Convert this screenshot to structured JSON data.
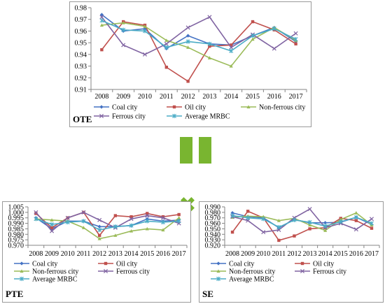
{
  "series_styles": [
    {
      "name": "Coal city",
      "color": "#4472c4",
      "marker": "diamond"
    },
    {
      "name": "Oil city",
      "color": "#c0504d",
      "marker": "square"
    },
    {
      "name": "Non-ferrous city",
      "color": "#9bbb59",
      "marker": "triangle"
    },
    {
      "name": "Ferrous city",
      "color": "#8064a2",
      "marker": "x"
    },
    {
      "name": "Average MRBC",
      "color": "#4bacc6",
      "marker": "star"
    }
  ],
  "operator_sign": "✖",
  "chart_data": [
    {
      "id": "ote",
      "type": "line",
      "panel_label": "OTE",
      "categories": [
        "2008",
        "2009",
        "2010",
        "2011",
        "2012",
        "2013",
        "2014",
        "2015",
        "2016",
        "2017"
      ],
      "ylim": [
        0.91,
        0.98
      ],
      "yticks": [
        "0.91",
        "0.92",
        "0.93",
        "0.94",
        "0.95",
        "0.96",
        "0.97",
        "0.98"
      ],
      "legend": "bottom",
      "series": [
        {
          "name": "Coal city",
          "values": [
            0.974,
            0.96,
            0.962,
            0.945,
            0.956,
            0.949,
            0.948,
            0.956,
            0.963,
            0.951
          ]
        },
        {
          "name": "Oil city",
          "values": [
            0.944,
            0.968,
            0.965,
            0.929,
            0.917,
            0.947,
            0.948,
            0.968,
            0.961,
            0.949
          ]
        },
        {
          "name": "Non-ferrous city",
          "values": [
            0.965,
            0.967,
            0.964,
            0.952,
            0.946,
            0.937,
            0.93,
            0.953,
            0.963,
            0.952
          ]
        },
        {
          "name": "Ferrous city",
          "values": [
            0.972,
            0.948,
            0.94,
            0.949,
            0.963,
            0.972,
            0.946,
            0.957,
            0.945,
            0.958
          ]
        },
        {
          "name": "Average MRBC",
          "values": [
            0.969,
            0.961,
            0.96,
            0.946,
            0.951,
            0.949,
            0.943,
            0.956,
            0.962,
            0.953
          ]
        }
      ]
    },
    {
      "id": "pte",
      "type": "line",
      "panel_label": "PTE",
      "categories": [
        "2008",
        "2009",
        "2010",
        "2011",
        "2012",
        "2013",
        "2014",
        "2015",
        "2016",
        "2017"
      ],
      "ylim": [
        0.97,
        1.005
      ],
      "yticks": [
        "0.970",
        "0.975",
        "0.980",
        "0.985",
        "0.990",
        "0.995",
        "1.000",
        "1.005"
      ],
      "legend": "bottom",
      "series": [
        {
          "name": "Coal city",
          "values": [
            0.995,
            0.985,
            0.992,
            0.992,
            0.987,
            0.987,
            0.988,
            0.994,
            0.992,
            0.993
          ]
        },
        {
          "name": "Oil city",
          "values": [
            0.999,
            0.986,
            0.995,
            1.0,
            0.979,
            0.997,
            0.996,
            0.999,
            0.996,
            0.998
          ]
        },
        {
          "name": "Non-ferrous city",
          "values": [
            0.994,
            0.993,
            0.992,
            0.986,
            0.976,
            0.979,
            0.983,
            0.985,
            0.984,
            0.995
          ]
        },
        {
          "name": "Ferrous city",
          "values": [
            1.0,
            0.983,
            0.995,
            1.0,
            0.993,
            0.986,
            0.994,
            0.997,
            0.995,
            0.99
          ]
        },
        {
          "name": "Average MRBC",
          "values": [
            0.994,
            0.989,
            0.991,
            0.992,
            0.984,
            0.987,
            0.988,
            0.992,
            0.991,
            0.992
          ]
        }
      ]
    },
    {
      "id": "se",
      "type": "line",
      "panel_label": "SE",
      "categories": [
        "2008",
        "2009",
        "2010",
        "2011",
        "2012",
        "2013",
        "2014",
        "2015",
        "2016",
        "2017"
      ],
      "ylim": [
        0.92,
        0.99
      ],
      "yticks": [
        "0.920",
        "0.930",
        "0.940",
        "0.950",
        "0.960",
        "0.970",
        "0.980",
        "0.990"
      ],
      "legend": "bottom",
      "series": [
        {
          "name": "Coal city",
          "values": [
            0.979,
            0.972,
            0.97,
            0.952,
            0.967,
            0.961,
            0.961,
            0.962,
            0.971,
            0.958
          ]
        },
        {
          "name": "Oil city",
          "values": [
            0.944,
            0.982,
            0.97,
            0.929,
            0.937,
            0.95,
            0.952,
            0.969,
            0.965,
            0.951
          ]
        },
        {
          "name": "Non-ferrous city",
          "values": [
            0.971,
            0.973,
            0.972,
            0.965,
            0.969,
            0.957,
            0.947,
            0.967,
            0.979,
            0.957
          ]
        },
        {
          "name": "Ferrous city",
          "values": [
            0.972,
            0.965,
            0.944,
            0.948,
            0.97,
            0.986,
            0.952,
            0.96,
            0.949,
            0.968
          ]
        },
        {
          "name": "Average MRBC",
          "values": [
            0.974,
            0.97,
            0.968,
            0.953,
            0.966,
            0.962,
            0.955,
            0.963,
            0.971,
            0.96
          ]
        }
      ]
    }
  ]
}
